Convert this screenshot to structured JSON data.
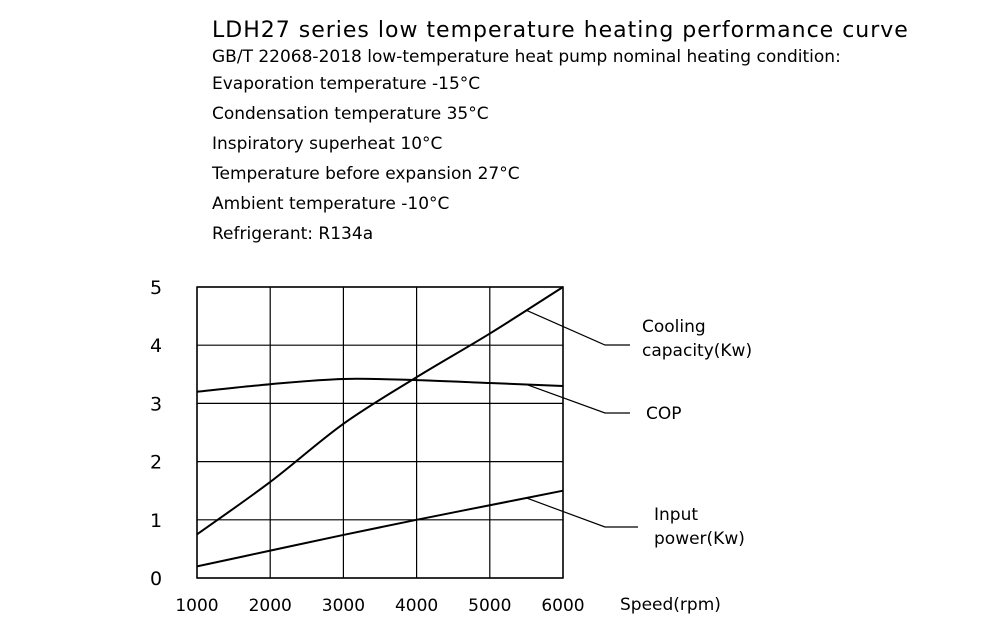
{
  "header": {
    "title": "LDH27 series low temperature heating performance curve",
    "subtitle": "GB/T 22068-2018 low-temperature heat pump nominal heating condition:",
    "conditions": [
      "Evaporation temperature -15°C",
      "Condensation  temperature 35°C",
      "Inspiratory superheat 10°C",
      "Temperature before expansion 27°C",
      "Ambient  temperature -10°C",
      "Refrigerant: R134a"
    ]
  },
  "chart_data": {
    "type": "line",
    "title": "LDH27 series low temperature heating performance curve",
    "xlabel": "Speed(rpm)",
    "ylabel": "",
    "xlim": [
      1000,
      6000
    ],
    "ylim": [
      0,
      5
    ],
    "x_ticks": [
      1000,
      2000,
      3000,
      4000,
      5000,
      6000
    ],
    "y_ticks": [
      0,
      1,
      2,
      3,
      4,
      5
    ],
    "grid": true,
    "line_color": "#000000",
    "series": [
      {
        "name": "Cooling capacity(Kw)",
        "label_lines": [
          "Cooling",
          "capacity(Kw)"
        ],
        "x": [
          1000,
          2000,
          3000,
          4000,
          5000,
          6000
        ],
        "values": [
          0.75,
          1.65,
          2.65,
          3.45,
          4.2,
          5.0
        ]
      },
      {
        "name": "COP",
        "label_lines": [
          "COP"
        ],
        "x": [
          1000,
          2000,
          3000,
          4000,
          5000,
          6000
        ],
        "values": [
          3.2,
          3.33,
          3.42,
          3.4,
          3.35,
          3.3
        ]
      },
      {
        "name": "Input power(Kw)",
        "label_lines": [
          "Input",
          "power(Kw)"
        ],
        "x": [
          1000,
          2000,
          3000,
          4000,
          5000,
          6000
        ],
        "values": [
          0.2,
          0.47,
          0.74,
          1.0,
          1.25,
          1.5
        ]
      }
    ]
  }
}
